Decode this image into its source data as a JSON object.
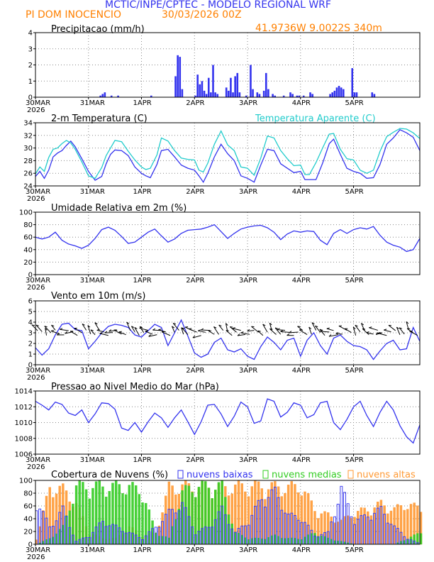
{
  "header": {
    "line1": "MCTIC/INPE/CPTEC - MODELO REGIONAL WRF",
    "location": "PI DOM INOCENCIO",
    "date": "30/03/2026 00Z",
    "coords": "41.9736W 9.0022S 340m"
  },
  "colors": {
    "blue": "#3333ee",
    "cyan": "#22cccc",
    "green": "#33cc22",
    "orange": "#ff9933",
    "header_blue": "#3333ee",
    "header_orange": "#ff8000"
  },
  "x_axis": {
    "labels": [
      "30MAR",
      "31MAR",
      "1APR",
      "2APR",
      "3APR",
      "4APR",
      "5APR"
    ],
    "year": "2026",
    "hours": [
      0,
      24,
      48,
      72,
      96,
      120,
      144
    ],
    "range": [
      0,
      174
    ]
  },
  "chart_data": [
    {
      "id": "precip",
      "type": "bar",
      "title": "Precipitacao (mm/h)",
      "ylim": [
        0,
        4
      ],
      "yticks": [
        0,
        1,
        2,
        3,
        4
      ],
      "bars": [
        [
          29,
          0.1
        ],
        [
          30,
          0.2
        ],
        [
          31,
          0.3
        ],
        [
          34,
          0.1
        ],
        [
          37,
          0.1
        ],
        [
          52,
          0.1
        ],
        [
          63,
          1.3
        ],
        [
          64,
          2.6
        ],
        [
          65,
          2.5
        ],
        [
          66,
          0.5
        ],
        [
          72,
          0.1
        ],
        [
          73,
          1.4
        ],
        [
          74,
          0.8
        ],
        [
          75,
          1.0
        ],
        [
          76,
          0.4
        ],
        [
          77,
          0.2
        ],
        [
          78,
          1.2
        ],
        [
          79,
          0.3
        ],
        [
          80,
          2.0
        ],
        [
          81,
          0.3
        ],
        [
          82,
          0.2
        ],
        [
          86,
          0.6
        ],
        [
          87,
          0.4
        ],
        [
          88,
          1.2
        ],
        [
          89,
          0.3
        ],
        [
          90,
          1.3
        ],
        [
          91,
          1.5
        ],
        [
          92,
          0.3
        ],
        [
          95,
          0.1
        ],
        [
          97,
          2.0
        ],
        [
          98,
          0.5
        ],
        [
          100,
          0.3
        ],
        [
          101,
          0.2
        ],
        [
          103,
          0.4
        ],
        [
          104,
          1.5
        ],
        [
          105,
          0.5
        ],
        [
          107,
          0.2
        ],
        [
          108,
          0.1
        ],
        [
          112,
          0.1
        ],
        [
          115,
          0.3
        ],
        [
          116,
          0.2
        ],
        [
          118,
          0.1
        ],
        [
          119,
          0.1
        ],
        [
          121,
          0.1
        ],
        [
          124,
          0.3
        ],
        [
          125,
          0.2
        ],
        [
          133,
          0.2
        ],
        [
          134,
          0.3
        ],
        [
          135,
          0.4
        ],
        [
          136,
          0.6
        ],
        [
          137,
          0.7
        ],
        [
          138,
          0.6
        ],
        [
          139,
          0.5
        ],
        [
          143,
          1.8
        ],
        [
          144,
          0.3
        ],
        [
          145,
          0.3
        ],
        [
          152,
          0.3
        ],
        [
          153,
          0.2
        ]
      ]
    },
    {
      "id": "temp",
      "type": "line",
      "title": "2-m Temperatura (C)",
      "legend": "Temperatura Aparente (C)",
      "ylim": [
        24,
        34
      ],
      "yticks": [
        24,
        26,
        28,
        30,
        32,
        34
      ],
      "series": [
        {
          "name": "2-m Temperatura (C)",
          "color": "blue",
          "x": [
            0,
            2,
            4,
            6,
            8,
            10,
            12,
            14,
            16,
            18,
            21,
            24,
            27,
            30,
            32,
            34,
            36,
            39,
            42,
            45,
            48,
            50,
            52,
            55,
            57,
            60,
            63,
            66,
            69,
            72,
            74,
            76,
            78,
            81,
            84,
            87,
            90,
            93,
            96,
            99,
            102,
            105,
            108,
            111,
            114,
            117,
            120,
            122,
            124,
            127,
            130,
            133,
            135,
            138,
            141,
            144,
            147,
            150,
            153,
            156,
            159,
            162,
            165,
            168,
            171,
            174
          ],
          "y": [
            25.5,
            26.3,
            25.2,
            26.5,
            28.6,
            29.2,
            29.6,
            30.4,
            31.1,
            30.2,
            28.3,
            26.3,
            24.9,
            25.5,
            27.5,
            29.0,
            29.7,
            29.6,
            28.8,
            27.0,
            26.0,
            25.6,
            25.3,
            27.4,
            29.6,
            29.8,
            28.6,
            27.3,
            26.8,
            26.5,
            25.6,
            24.6,
            26.0,
            28.6,
            30.6,
            29.1,
            28.0,
            25.6,
            25.2,
            24.6,
            27.3,
            29.8,
            29.6,
            27.5,
            26.8,
            26.1,
            26.3,
            25.0,
            25.0,
            25.0,
            27.6,
            30.7,
            31.4,
            29.0,
            26.8,
            26.3,
            26.0,
            25.2,
            25.3,
            27.4,
            30.6,
            31.6,
            32.9,
            32.4,
            31.7,
            29.6
          ]
        },
        {
          "name": "Temperatura Aparente (C)",
          "color": "cyan",
          "x": [
            0,
            2,
            4,
            6,
            8,
            10,
            12,
            14,
            16,
            18,
            21,
            24,
            27,
            30,
            32,
            34,
            36,
            39,
            42,
            45,
            48,
            50,
            52,
            55,
            57,
            60,
            63,
            66,
            69,
            72,
            74,
            76,
            78,
            81,
            84,
            87,
            90,
            93,
            96,
            99,
            102,
            105,
            108,
            111,
            114,
            117,
            120,
            122,
            124,
            127,
            130,
            133,
            135,
            138,
            141,
            144,
            147,
            150,
            153,
            156,
            159,
            162,
            165,
            168,
            171,
            174
          ],
          "y": [
            25.9,
            27.0,
            26.3,
            28.5,
            29.8,
            30.0,
            30.7,
            31.2,
            30.8,
            29.8,
            27.8,
            25.6,
            25.2,
            26.9,
            28.8,
            30.0,
            31.2,
            31.0,
            29.5,
            28.1,
            27.0,
            26.6,
            26.8,
            28.9,
            31.6,
            31.1,
            29.6,
            28.4,
            28.2,
            28.1,
            26.5,
            26.2,
            27.6,
            30.6,
            32.7,
            30.5,
            29.6,
            27.0,
            26.8,
            25.7,
            28.4,
            31.9,
            31.6,
            29.6,
            28.3,
            27.2,
            27.3,
            25.8,
            25.8,
            27.7,
            30.0,
            32.2,
            32.3,
            29.8,
            28.3,
            28.1,
            26.5,
            26.0,
            26.5,
            29.5,
            31.8,
            32.5,
            33.1,
            33.0,
            32.4,
            31.5
          ]
        }
      ]
    },
    {
      "id": "rh",
      "type": "line",
      "title": "Umidade Relativa em 2m (%)",
      "ylim": [
        0,
        100
      ],
      "yticks": [
        0,
        20,
        40,
        60,
        80,
        100
      ],
      "series": [
        {
          "name": "Umidade Relativa em 2m (%)",
          "color": "blue",
          "x": [
            0,
            3,
            6,
            9,
            12,
            15,
            18,
            21,
            24,
            27,
            30,
            33,
            36,
            39,
            42,
            45,
            48,
            51,
            54,
            57,
            60,
            63,
            66,
            69,
            72,
            75,
            78,
            81,
            84,
            87,
            90,
            93,
            96,
            99,
            102,
            105,
            108,
            111,
            114,
            117,
            120,
            123,
            126,
            129,
            132,
            135,
            138,
            141,
            144,
            147,
            150,
            153,
            156,
            159,
            162,
            165,
            168,
            171,
            174
          ],
          "y": [
            60,
            57,
            60,
            68,
            55,
            49,
            46,
            42,
            47,
            58,
            72,
            76,
            71,
            61,
            50,
            52,
            60,
            68,
            73,
            62,
            52,
            57,
            66,
            71,
            72,
            73,
            76,
            80,
            69,
            58,
            66,
            73,
            76,
            78,
            79,
            75,
            68,
            56,
            65,
            70,
            68,
            70,
            69,
            55,
            48,
            66,
            72,
            66,
            72,
            75,
            73,
            77,
            63,
            52,
            47,
            44,
            37,
            40,
            58
          ]
        }
      ]
    },
    {
      "id": "wind",
      "type": "line",
      "title": "Vento em 10m (m/s)",
      "ylim": [
        0,
        6
      ],
      "yticks": [
        0,
        1,
        2,
        3,
        4,
        5,
        6
      ],
      "barbs": "wind direction arrows along y=3",
      "series": [
        {
          "name": "Vento em 10m (m/s)",
          "color": "blue",
          "x": [
            0,
            3,
            6,
            9,
            12,
            15,
            18,
            21,
            24,
            27,
            30,
            33,
            36,
            39,
            42,
            45,
            48,
            51,
            54,
            57,
            60,
            63,
            66,
            69,
            72,
            75,
            78,
            81,
            84,
            87,
            90,
            93,
            96,
            99,
            102,
            105,
            108,
            111,
            114,
            117,
            120,
            123,
            126,
            129,
            132,
            135,
            138,
            141,
            144,
            147,
            150,
            153,
            156,
            159,
            162,
            165,
            168,
            171,
            174
          ],
          "y": [
            1.6,
            0.9,
            1.5,
            2.8,
            3.8,
            3.9,
            3.3,
            3.2,
            1.5,
            2.2,
            3.0,
            3.6,
            3.8,
            3.7,
            3.5,
            2.8,
            2.6,
            3.2,
            3.8,
            3.5,
            1.8,
            3.0,
            4.2,
            2.7,
            1.1,
            0.7,
            1.0,
            2.1,
            2.5,
            1.4,
            1.2,
            1.5,
            0.8,
            0.5,
            1.7,
            2.6,
            2.1,
            1.4,
            2.3,
            2.5,
            0.8,
            2.3,
            3.0,
            1.8,
            1.0,
            2.5,
            2.8,
            2.2,
            1.8,
            1.7,
            1.4,
            0.5,
            1.3,
            2.0,
            2.3,
            1.4,
            1.5,
            3.5,
            2.2
          ]
        }
      ]
    },
    {
      "id": "pressure",
      "type": "line",
      "title": "Pressao ao Nivel Medio do Mar (hPa)",
      "ylim": [
        1006,
        1014
      ],
      "yticks": [
        1006,
        1008,
        1010,
        1012,
        1014
      ],
      "series": [
        {
          "name": "Pressao ao Nivel Medio do Mar (hPa)",
          "color": "blue",
          "x": [
            0,
            3,
            6,
            9,
            12,
            15,
            18,
            21,
            24,
            27,
            30,
            33,
            36,
            39,
            42,
            45,
            48,
            51,
            54,
            57,
            60,
            63,
            66,
            69,
            72,
            75,
            78,
            81,
            84,
            87,
            90,
            93,
            96,
            99,
            102,
            105,
            108,
            111,
            114,
            117,
            120,
            123,
            126,
            129,
            132,
            135,
            138,
            141,
            144,
            147,
            150,
            153,
            156,
            159,
            162,
            165,
            168,
            171,
            174
          ],
          "y": [
            1012.7,
            1012.2,
            1011.6,
            1012.6,
            1012.3,
            1011.2,
            1010.9,
            1011.6,
            1010.0,
            1011.1,
            1012.5,
            1012.4,
            1011.7,
            1009.3,
            1009.0,
            1010.0,
            1008.8,
            1010.1,
            1011.2,
            1010.6,
            1009.4,
            1010.6,
            1011.6,
            1010.1,
            1008.5,
            1010.1,
            1012.2,
            1012.3,
            1011.1,
            1009.5,
            1010.8,
            1012.6,
            1012.0,
            1009.9,
            1010.2,
            1013.0,
            1012.7,
            1010.7,
            1011.3,
            1012.5,
            1012.2,
            1010.6,
            1011.0,
            1012.5,
            1012.7,
            1010.0,
            1009.1,
            1010.4,
            1012.0,
            1012.7,
            1010.9,
            1009.5,
            1011.3,
            1012.7,
            1011.6,
            1009.6,
            1008.2,
            1007.4,
            1009.7
          ]
        }
      ]
    },
    {
      "id": "clouds",
      "type": "bar",
      "title": "Cobertura de Nuvens (%)",
      "legend": [
        "nuvens baixas",
        "nuvens medias",
        "nuvens altas"
      ],
      "ylim": [
        0,
        100
      ],
      "yticks": [
        0,
        20,
        40,
        60,
        80,
        100
      ],
      "series": [
        {
          "name": "nuvens altas",
          "color": "orange",
          "x": [
            0,
            6,
            12,
            18,
            24,
            30,
            36,
            42,
            48,
            54,
            60,
            66,
            72,
            78,
            84,
            90,
            96,
            102,
            108,
            114,
            120,
            126,
            132,
            138,
            144,
            150,
            156,
            162,
            168,
            174
          ],
          "y": [
            10,
            98,
            95,
            70,
            20,
            10,
            10,
            30,
            15,
            20,
            98,
            100,
            98,
            100,
            98,
            99,
            100,
            100,
            99,
            98,
            100,
            60,
            50,
            40,
            55,
            60,
            70,
            60,
            70,
            60
          ]
        },
        {
          "name": "nuvens medias",
          "color": "green",
          "x": [
            0,
            6,
            12,
            18,
            24,
            30,
            36,
            42,
            48,
            54,
            60,
            66,
            72,
            78,
            84,
            90,
            96,
            102,
            108,
            114,
            120,
            126,
            132,
            138,
            144,
            150,
            156,
            162,
            168,
            174
          ],
          "y": [
            0,
            10,
            30,
            100,
            100,
            100,
            100,
            100,
            90,
            20,
            10,
            90,
            100,
            100,
            100,
            20,
            10,
            10,
            15,
            10,
            10,
            20,
            10,
            5,
            0,
            0,
            0,
            0,
            10,
            20
          ]
        },
        {
          "name": "nuvens baixas",
          "color": "blue",
          "x": [
            0,
            6,
            12,
            18,
            24,
            30,
            36,
            42,
            48,
            54,
            60,
            66,
            72,
            78,
            84,
            90,
            96,
            102,
            108,
            114,
            120,
            126,
            132,
            138,
            144,
            150,
            156,
            162,
            168,
            174
          ],
          "y": [
            75,
            30,
            60,
            5,
            15,
            40,
            30,
            20,
            10,
            30,
            55,
            70,
            20,
            30,
            60,
            20,
            40,
            80,
            90,
            50,
            45,
            15,
            20,
            95,
            40,
            50,
            60,
            30,
            10,
            0
          ]
        }
      ]
    }
  ]
}
